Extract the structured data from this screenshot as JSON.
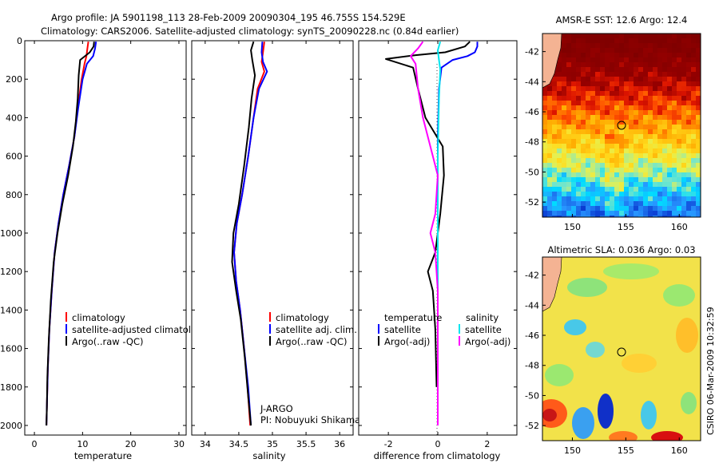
{
  "title": {
    "line1": "Argo profile: JA 5901198_113 28-Feb-2009 20090304_195 46.755S 154.529E",
    "line2": "Climatology: CARS2006. Satellite-adjusted climatology: synTS_20090228.nc (0.84d earlier)"
  },
  "credit": "CSIRO 06-Mar-2009 10:32:59",
  "colors": {
    "climatology": "#ff0000",
    "satellite": "#0000ff",
    "argo": "#000000",
    "sat_sal": "#00e5ee",
    "argo_sal": "#ff00ff",
    "land": "#f4b393"
  },
  "chart_data": [
    {
      "type": "line",
      "id": "temperature",
      "xlabel": "temperature",
      "ylabel": "",
      "xlim": [
        -2,
        31.5
      ],
      "ylim": [
        0,
        2050
      ],
      "y_reversed": true,
      "xticks": [
        0,
        10,
        20,
        30
      ],
      "yticks": [
        0,
        200,
        400,
        600,
        800,
        1000,
        1200,
        1400,
        1600,
        1800,
        2000
      ],
      "legend": [
        "climatology",
        "satellite-adjusted climatology",
        "Argo(..raw -QC)"
      ],
      "series": [
        {
          "name": "climatology",
          "color": "#ff0000",
          "points": [
            [
              11.2,
              5
            ],
            [
              11.0,
              40
            ],
            [
              10.8,
              80
            ],
            [
              10.4,
              120
            ],
            [
              9.8,
              200
            ],
            [
              9.0,
              350
            ],
            [
              8.3,
              500
            ],
            [
              7.2,
              650
            ],
            [
              6.0,
              800
            ],
            [
              5.0,
              950
            ],
            [
              4.2,
              1100
            ],
            [
              3.6,
              1300
            ],
            [
              3.1,
              1500
            ],
            [
              2.8,
              1700
            ],
            [
              2.6,
              1900
            ],
            [
              2.5,
              2000
            ]
          ]
        },
        {
          "name": "satellite-adjusted climatology",
          "color": "#0000ff",
          "points": [
            [
              12.8,
              5
            ],
            [
              12.6,
              40
            ],
            [
              12.2,
              80
            ],
            [
              10.9,
              120
            ],
            [
              10.0,
              200
            ],
            [
              9.1,
              350
            ],
            [
              8.3,
              500
            ],
            [
              7.2,
              650
            ],
            [
              6.0,
              800
            ],
            [
              5.0,
              950
            ],
            [
              4.2,
              1100
            ],
            [
              3.6,
              1300
            ],
            [
              3.1,
              1500
            ],
            [
              2.8,
              1700
            ],
            [
              2.6,
              1900
            ],
            [
              2.5,
              2000
            ]
          ]
        },
        {
          "name": "Argo(..raw -QC)",
          "color": "#000000",
          "points": [
            [
              12.4,
              5
            ],
            [
              12.3,
              30
            ],
            [
              11.5,
              60
            ],
            [
              9.5,
              100
            ],
            [
              9.2,
              180
            ],
            [
              9.0,
              300
            ],
            [
              8.6,
              420
            ],
            [
              8.0,
              550
            ],
            [
              7.0,
              700
            ],
            [
              5.8,
              850
            ],
            [
              4.8,
              1000
            ],
            [
              4.0,
              1150
            ],
            [
              3.4,
              1350
            ],
            [
              3.0,
              1550
            ],
            [
              2.7,
              1750
            ],
            [
              2.6,
              1900
            ],
            [
              2.5,
              2000
            ]
          ]
        }
      ]
    },
    {
      "type": "line",
      "id": "salinity",
      "xlabel": "salinity",
      "ylabel": "",
      "xlim": [
        33.8,
        36.2
      ],
      "ylim": [
        0,
        2050
      ],
      "y_reversed": true,
      "xticks": [
        34,
        34.5,
        35,
        35.5,
        36
      ],
      "xticklabels": [
        "34",
        "34.5",
        "35",
        "35.5",
        "36"
      ],
      "legend": [
        "climatology",
        "satellite adj. clim.",
        "Argo(..raw -QC)"
      ],
      "annotation": [
        "J-ARGO",
        "PI: Nobuyuki Shikama"
      ],
      "series": [
        {
          "name": "climatology",
          "color": "#ff0000",
          "points": [
            [
              34.88,
              5
            ],
            [
              34.86,
              60
            ],
            [
              34.84,
              110
            ],
            [
              34.88,
              160
            ],
            [
              34.78,
              250
            ],
            [
              34.72,
              400
            ],
            [
              34.64,
              600
            ],
            [
              34.55,
              800
            ],
            [
              34.47,
              950
            ],
            [
              34.43,
              1100
            ],
            [
              34.46,
              1250
            ],
            [
              34.52,
              1400
            ],
            [
              34.58,
              1600
            ],
            [
              34.63,
              1800
            ],
            [
              34.67,
              2000
            ]
          ]
        },
        {
          "name": "satellite adj. clim.",
          "color": "#0000ff",
          "points": [
            [
              34.85,
              5
            ],
            [
              34.84,
              60
            ],
            [
              34.86,
              110
            ],
            [
              34.92,
              160
            ],
            [
              34.8,
              250
            ],
            [
              34.72,
              400
            ],
            [
              34.64,
              600
            ],
            [
              34.55,
              800
            ],
            [
              34.47,
              950
            ],
            [
              34.43,
              1100
            ],
            [
              34.46,
              1250
            ],
            [
              34.52,
              1400
            ],
            [
              34.58,
              1600
            ],
            [
              34.64,
              1800
            ],
            [
              34.68,
              2000
            ]
          ]
        },
        {
          "name": "Argo(..raw -QC)",
          "color": "#000000",
          "points": [
            [
              34.72,
              5
            ],
            [
              34.68,
              50
            ],
            [
              34.7,
              100
            ],
            [
              34.74,
              180
            ],
            [
              34.69,
              300
            ],
            [
              34.65,
              450
            ],
            [
              34.58,
              650
            ],
            [
              34.5,
              850
            ],
            [
              34.42,
              1000
            ],
            [
              34.4,
              1150
            ],
            [
              34.46,
              1300
            ],
            [
              34.53,
              1450
            ],
            [
              34.59,
              1650
            ],
            [
              34.64,
              1850
            ],
            [
              34.68,
              2000
            ]
          ]
        }
      ]
    },
    {
      "type": "line",
      "id": "difference",
      "xlabel": "difference from climatology",
      "ylabel": "",
      "xlim": [
        -3.2,
        3.2
      ],
      "ylim": [
        0,
        2050
      ],
      "y_reversed": true,
      "xticks": [
        -2,
        0,
        2
      ],
      "legend_left_title": "temperature",
      "legend_right_title": "salinity",
      "legend_left": [
        "satellite",
        "Argo(-adj)"
      ],
      "legend_right": [
        "satellite",
        "Argo(-adj)"
      ],
      "series": [
        {
          "name": "temperature satellite",
          "color": "#0000ff",
          "points": [
            [
              1.6,
              5
            ],
            [
              1.6,
              30
            ],
            [
              1.5,
              60
            ],
            [
              1.2,
              80
            ],
            [
              0.6,
              100
            ],
            [
              0.15,
              140
            ],
            [
              0.05,
              250
            ],
            [
              0.0,
              500
            ],
            [
              0.0,
              1000
            ],
            [
              0.0,
              2000
            ]
          ]
        },
        {
          "name": "temperature Argo(-adj)",
          "color": "#000000",
          "points": [
            [
              1.3,
              5
            ],
            [
              1.1,
              30
            ],
            [
              0.3,
              60
            ],
            [
              -0.9,
              75
            ],
            [
              -2.1,
              95
            ],
            [
              -1.0,
              140
            ],
            [
              -0.8,
              250
            ],
            [
              -0.5,
              400
            ],
            [
              0.2,
              550
            ],
            [
              0.25,
              700
            ],
            [
              0.1,
              900
            ],
            [
              0.0,
              1000
            ],
            [
              -0.1,
              1100
            ],
            [
              -0.4,
              1200
            ],
            [
              -0.2,
              1300
            ],
            [
              -0.1,
              1500
            ],
            [
              -0.05,
              1800
            ]
          ]
        },
        {
          "name": "salinity satellite",
          "color": "#00e5ee",
          "points": [
            [
              0.1,
              5
            ],
            [
              0.0,
              50
            ],
            [
              0.05,
              100
            ],
            [
              0.1,
              150
            ],
            [
              0.05,
              300
            ],
            [
              0.0,
              600
            ],
            [
              0.0,
              1000
            ],
            [
              0.0,
              2000
            ]
          ]
        },
        {
          "name": "salinity Argo(-adj)",
          "color": "#ff00ff",
          "points": [
            [
              -0.6,
              5
            ],
            [
              -0.8,
              40
            ],
            [
              -1.1,
              80
            ],
            [
              -0.9,
              120
            ],
            [
              -0.8,
              250
            ],
            [
              -0.6,
              400
            ],
            [
              -0.3,
              550
            ],
            [
              0.0,
              700
            ],
            [
              -0.1,
              900
            ],
            [
              -0.3,
              1000
            ],
            [
              -0.1,
              1100
            ],
            [
              0.0,
              1300
            ],
            [
              0.0,
              1500
            ],
            [
              0.0,
              2000
            ]
          ]
        }
      ]
    },
    {
      "type": "heatmap",
      "id": "sst-map",
      "title": "AMSR-E SST: 12.6 Argo: 12.4",
      "xlim": [
        147.2,
        162
      ],
      "ylim": [
        -53,
        -40.8
      ],
      "xticks": [
        150,
        155,
        160
      ],
      "yticks": [
        -42,
        -44,
        -46,
        -48,
        -50,
        -52
      ],
      "marker": [
        154.5,
        -46.75
      ]
    },
    {
      "type": "heatmap",
      "id": "sla-map",
      "title": "Altimetric SLA: 0.036 Argo: 0.03",
      "xlim": [
        147.2,
        162
      ],
      "ylim": [
        -53,
        -40.8
      ],
      "xticks": [
        150,
        155,
        160
      ],
      "yticks": [
        -42,
        -44,
        -46,
        -48,
        -50,
        -52
      ],
      "marker": [
        154.5,
        -46.75
      ]
    }
  ]
}
